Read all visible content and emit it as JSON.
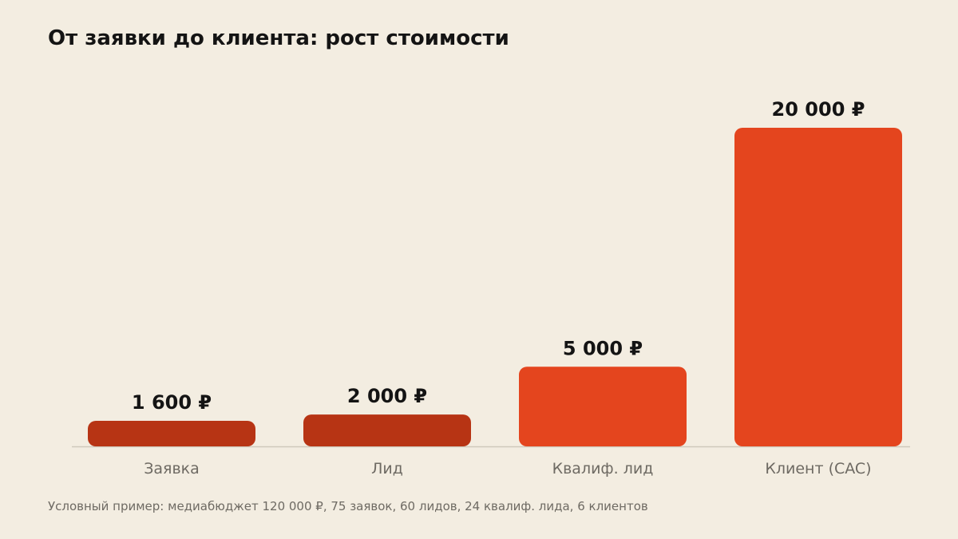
{
  "chart_data": {
    "type": "bar",
    "title": "От заявки до клиента: рост стоимости",
    "categories": [
      "Заявка",
      "Лид",
      "Квалиф. лид",
      "Клиент (CAC)"
    ],
    "values": [
      1600,
      2000,
      5000,
      20000
    ],
    "value_labels": [
      "1 600 ₽",
      "2 000 ₽",
      "5 000 ₽",
      "20 000 ₽"
    ],
    "bar_colors": [
      "#b73414",
      "#b73414",
      "#e4451e",
      "#e4451e"
    ],
    "unit": "₽",
    "ylim": [
      0,
      20000
    ],
    "grid": false,
    "legend": "none",
    "xlabel": "",
    "ylabel": ""
  },
  "footnote": "Условный пример: медиабюджет 120 000 ₽, 75 заявок, 60 лидов, 24 квалиф. лида, 6 клиентов",
  "colors": {
    "background": "#f3ede1",
    "baseline": "#cfc8bb",
    "value_text": "#141414",
    "category_text": "#6e6a63"
  }
}
